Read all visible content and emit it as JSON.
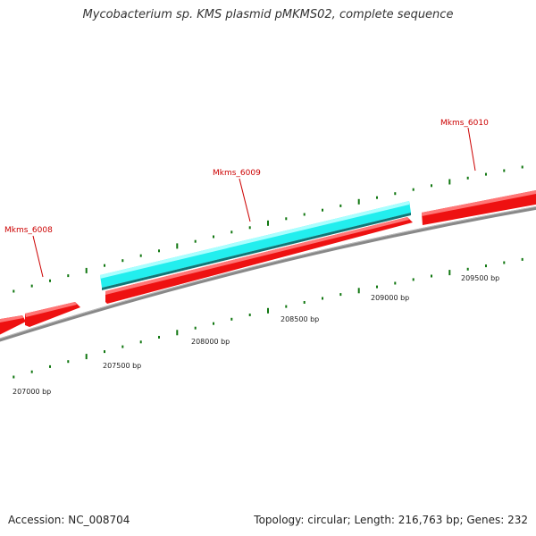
{
  "title": "Mycobacterium sp. KMS plasmid pMKMS02, complete sequence",
  "footer": {
    "accession": "Accession: NC_008704",
    "stats": "Topology: circular; Length: 216,763 bp; Genes: 232"
  },
  "colors": {
    "gene_forward": "#ee1111",
    "gene_highlight": "#22eeee",
    "backbone": "#888888",
    "ticks": "#117711",
    "label": "#cc0000"
  },
  "gene_labels": [
    "Mkms_6008",
    "Mkms_6009",
    "Mkms_6010"
  ],
  "scale_labels": [
    "207000 bp",
    "207500 bp",
    "208000 bp",
    "208500 bp",
    "209000 bp",
    "209500 bp"
  ]
}
